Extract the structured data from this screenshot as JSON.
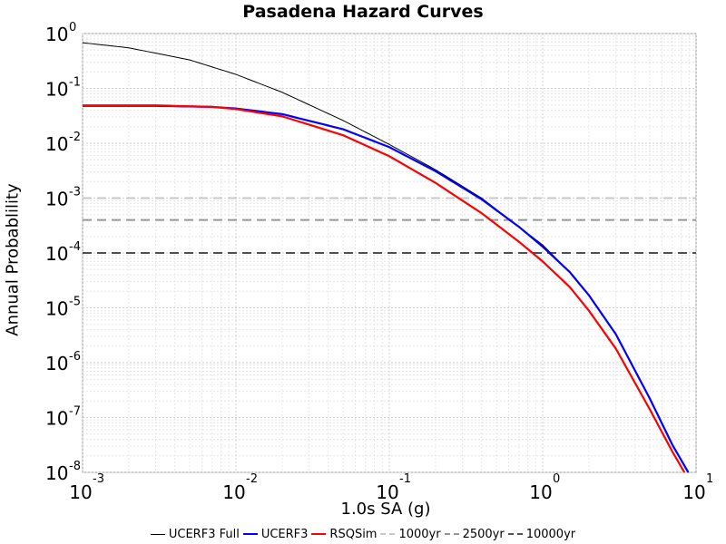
{
  "chart_data": {
    "type": "line",
    "title": "Pasadena Hazard Curves",
    "xlabel": "1.0s SA (g)",
    "ylabel": "Annual Probablility",
    "x_scale": "log",
    "y_scale": "log",
    "xlim": [
      0.001,
      10
    ],
    "ylim": [
      1e-08,
      1
    ],
    "grid": true,
    "legend_position": "bottom",
    "x_ticks": [
      {
        "base": "10",
        "exp": "-3"
      },
      {
        "base": "10",
        "exp": "-2"
      },
      {
        "base": "10",
        "exp": "-1"
      },
      {
        "base": "10",
        "exp": "0"
      },
      {
        "base": "10",
        "exp": "1"
      }
    ],
    "y_ticks": [
      {
        "base": "10",
        "exp": "0"
      },
      {
        "base": "10",
        "exp": "-1"
      },
      {
        "base": "10",
        "exp": "-2"
      },
      {
        "base": "10",
        "exp": "-3"
      },
      {
        "base": "10",
        "exp": "-4"
      },
      {
        "base": "10",
        "exp": "-5"
      },
      {
        "base": "10",
        "exp": "-6"
      },
      {
        "base": "10",
        "exp": "-7"
      },
      {
        "base": "10",
        "exp": "-8"
      }
    ],
    "series": [
      {
        "name": "UCERF3 Full",
        "color": "#000000",
        "points": [
          [
            0.001,
            0.68
          ],
          [
            0.002,
            0.55
          ],
          [
            0.005,
            0.33
          ],
          [
            0.01,
            0.18
          ],
          [
            0.02,
            0.085
          ],
          [
            0.05,
            0.026
          ],
          [
            0.1,
            0.0095
          ],
          [
            0.2,
            0.0033
          ],
          [
            0.4,
            0.001
          ],
          [
            0.7,
            0.0003
          ],
          [
            1,
            0.00014
          ],
          [
            1.5,
            4.5e-05
          ],
          [
            2,
            1.7e-05
          ],
          [
            3,
            3.3e-06
          ],
          [
            5,
            2.2e-07
          ],
          [
            7,
            3.2e-08
          ],
          [
            8.9,
            1e-08
          ]
        ]
      },
      {
        "name": "UCERF3",
        "color": "#0000ff",
        "points": [
          [
            0.001,
            0.048
          ],
          [
            0.003,
            0.048
          ],
          [
            0.007,
            0.046
          ],
          [
            0.01,
            0.043
          ],
          [
            0.02,
            0.034
          ],
          [
            0.05,
            0.018
          ],
          [
            0.1,
            0.0085
          ],
          [
            0.2,
            0.0031
          ],
          [
            0.4,
            0.00095
          ],
          [
            0.7,
            0.0003
          ],
          [
            1,
            0.00013
          ],
          [
            1.5,
            4.5e-05
          ],
          [
            2,
            1.7e-05
          ],
          [
            3,
            3.3e-06
          ],
          [
            5,
            2.2e-07
          ],
          [
            7,
            3.2e-08
          ],
          [
            8.9,
            1e-08
          ]
        ]
      },
      {
        "name": "RSQSim",
        "color": "#ff0000",
        "points": [
          [
            0.001,
            0.049
          ],
          [
            0.003,
            0.049
          ],
          [
            0.007,
            0.046
          ],
          [
            0.01,
            0.042
          ],
          [
            0.02,
            0.031
          ],
          [
            0.05,
            0.014
          ],
          [
            0.1,
            0.0058
          ],
          [
            0.2,
            0.0019
          ],
          [
            0.4,
            0.00053
          ],
          [
            0.7,
            0.00016
          ],
          [
            1,
            7e-05
          ],
          [
            1.5,
            2.4e-05
          ],
          [
            2,
            8.9e-06
          ],
          [
            3,
            1.8e-06
          ],
          [
            5,
            1.4e-07
          ],
          [
            7,
            2.4e-08
          ],
          [
            8.4,
            1e-08
          ]
        ]
      },
      {
        "name": "1000yr",
        "color": "#c8c8c8",
        "dashed": true,
        "y": 0.001
      },
      {
        "name": "2500yr",
        "color": "#969696",
        "dashed": true,
        "y": 0.0004
      },
      {
        "name": "10000yr",
        "color": "#505050",
        "dashed": true,
        "y": 0.0001
      }
    ]
  }
}
